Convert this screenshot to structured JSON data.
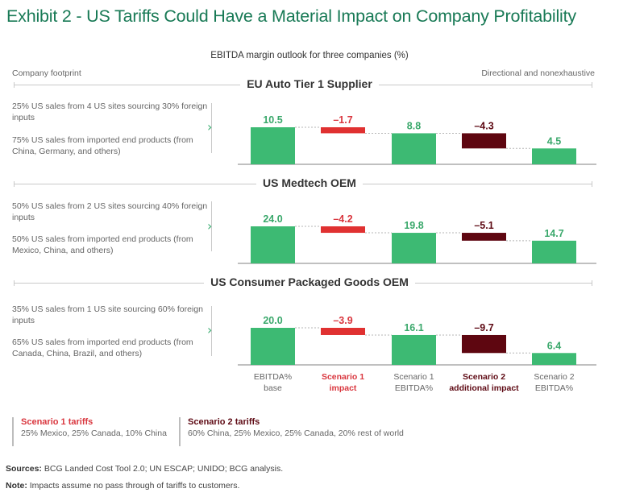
{
  "title": "Exhibit 2 - US Tariffs Could Have a Material Impact on Company Profitability",
  "subtitle": "EBITDA margin outlook for three companies (%)",
  "header_left": "Company footprint",
  "header_right": "Directional and nonexhaustive",
  "colors": {
    "base": "#3dba73",
    "scenario1": "#e03131",
    "scenario2": "#5e0610",
    "title": "#197a56"
  },
  "chart_data": {
    "type": "bar",
    "subtype": "waterfall",
    "title": "EBITDA margin outlook for three companies (%)",
    "categories": [
      "EBITDA% base",
      "Scenario 1 impact",
      "Scenario 1 EBITDA%",
      "Scenario 2 additional impact",
      "Scenario 2 EBITDA%"
    ],
    "category_labels": [
      {
        "line1": "EBITDA%",
        "line2": "base",
        "style": "base"
      },
      {
        "line1": "Scenario 1",
        "line2": "impact",
        "style": "scenario1"
      },
      {
        "line1": "Scenario 1",
        "line2": "EBITDA%",
        "style": "base"
      },
      {
        "line1": "Scenario 2",
        "line2": "additional impact",
        "style": "scenario2"
      },
      {
        "line1": "Scenario 2",
        "line2": "EBITDA%",
        "style": "base"
      }
    ],
    "panels": [
      {
        "name": "EU Auto Tier 1 Supplier",
        "footprint": [
          "25% US sales from 4 US sites sourcing 30% foreign inputs",
          "75% US sales from imported end products (from China, Germany, and others)"
        ],
        "values": [
          10.5,
          -1.7,
          8.8,
          -4.3,
          4.5
        ],
        "labels": [
          "10.5",
          "–1.7",
          "8.8",
          "–4.3",
          "4.5"
        ]
      },
      {
        "name": "US Medtech OEM",
        "footprint": [
          "50% US sales from 2 US sites sourcing 40% foreign inputs",
          "50% US sales from imported end products (from Mexico, China, and others)"
        ],
        "values": [
          24.0,
          -4.2,
          19.8,
          -5.1,
          14.7
        ],
        "labels": [
          "24.0",
          "–4.2",
          "19.8",
          "–5.1",
          "14.7"
        ]
      },
      {
        "name": "US Consumer Packaged Goods OEM",
        "footprint": [
          "35% US sales from 1 US site sourcing 60% foreign inputs",
          "65% US sales from imported end products (from Canada, China, Brazil, and others)"
        ],
        "values": [
          20.0,
          -3.9,
          16.1,
          -9.7,
          6.4
        ],
        "labels": [
          "20.0",
          "–3.9",
          "16.1",
          "–9.7",
          "6.4"
        ]
      }
    ],
    "legend": [
      {
        "title": "Scenario 1 tariffs",
        "text": "25% Mexico, 25% Canada, 10% China"
      },
      {
        "title": "Scenario 2 tariffs",
        "text": "60% China, 25% Mexico, 25% Canada, 20% rest of world"
      }
    ],
    "xlabel": "",
    "ylabel": "",
    "grid": false
  },
  "sources_label": "Sources:",
  "sources_text": " BCG Landed Cost Tool 2.0; UN ESCAP; UNIDO; BCG analysis.",
  "note_label": "Note:",
  "note_text": " Impacts assume no pass through of tariffs to customers."
}
